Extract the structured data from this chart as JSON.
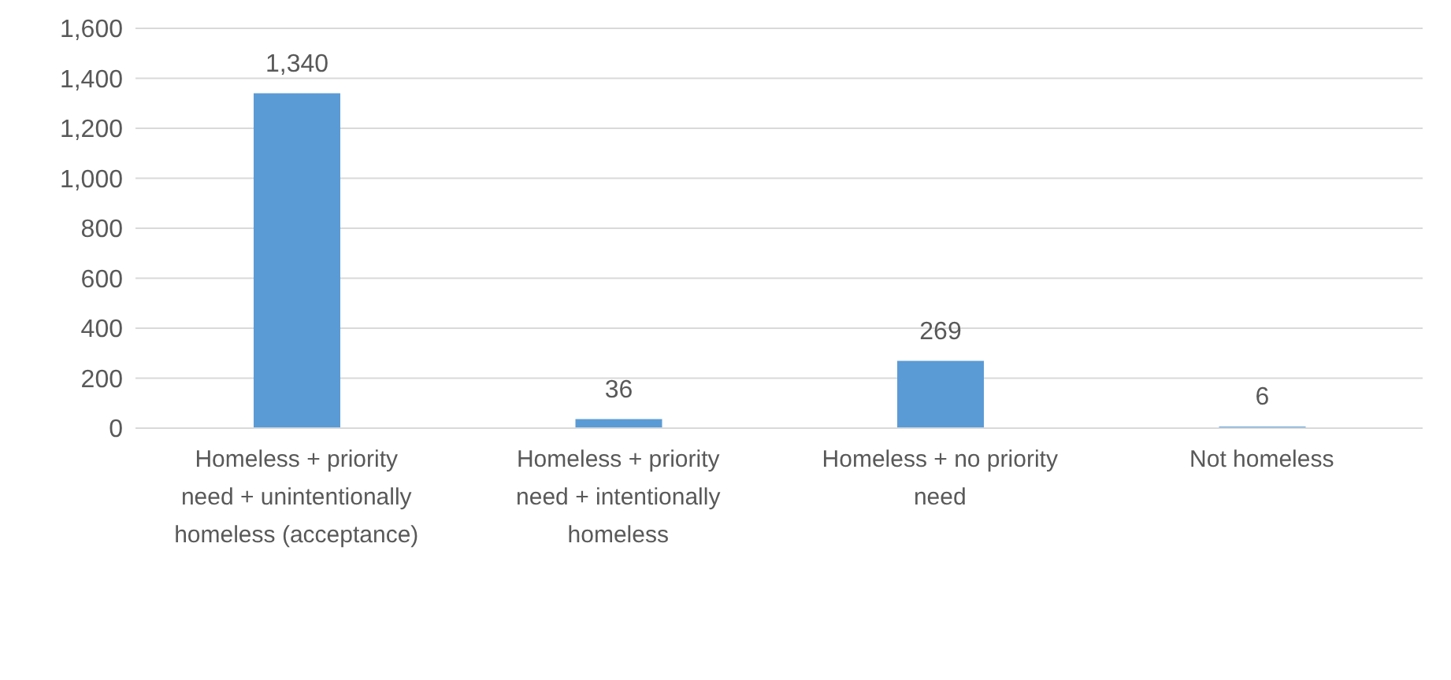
{
  "chart_data": {
    "type": "bar",
    "categories": [
      "Homeless + priority need + unintentionally homeless (acceptance)",
      "Homeless + priority need + intentionally homeless",
      "Homeless + no priority need",
      "Not homeless"
    ],
    "values": [
      1340,
      36,
      269,
      6
    ],
    "color": "#5b9bd5",
    "ylim": [
      0,
      1600
    ],
    "yticks": [
      {
        "value": 0,
        "label": "0"
      },
      {
        "value": 200,
        "label": "200"
      },
      {
        "value": 400,
        "label": "400"
      },
      {
        "value": 600,
        "label": "600"
      },
      {
        "value": 800,
        "label": "800"
      },
      {
        "value": 1000,
        "label": "1,000"
      },
      {
        "value": 1200,
        "label": "1,200"
      },
      {
        "value": 1400,
        "label": "1,400"
      },
      {
        "value": 1600,
        "label": "1,600"
      }
    ],
    "grid": "y",
    "value_labels": [
      "1,340",
      "36",
      "269",
      "6"
    ]
  }
}
